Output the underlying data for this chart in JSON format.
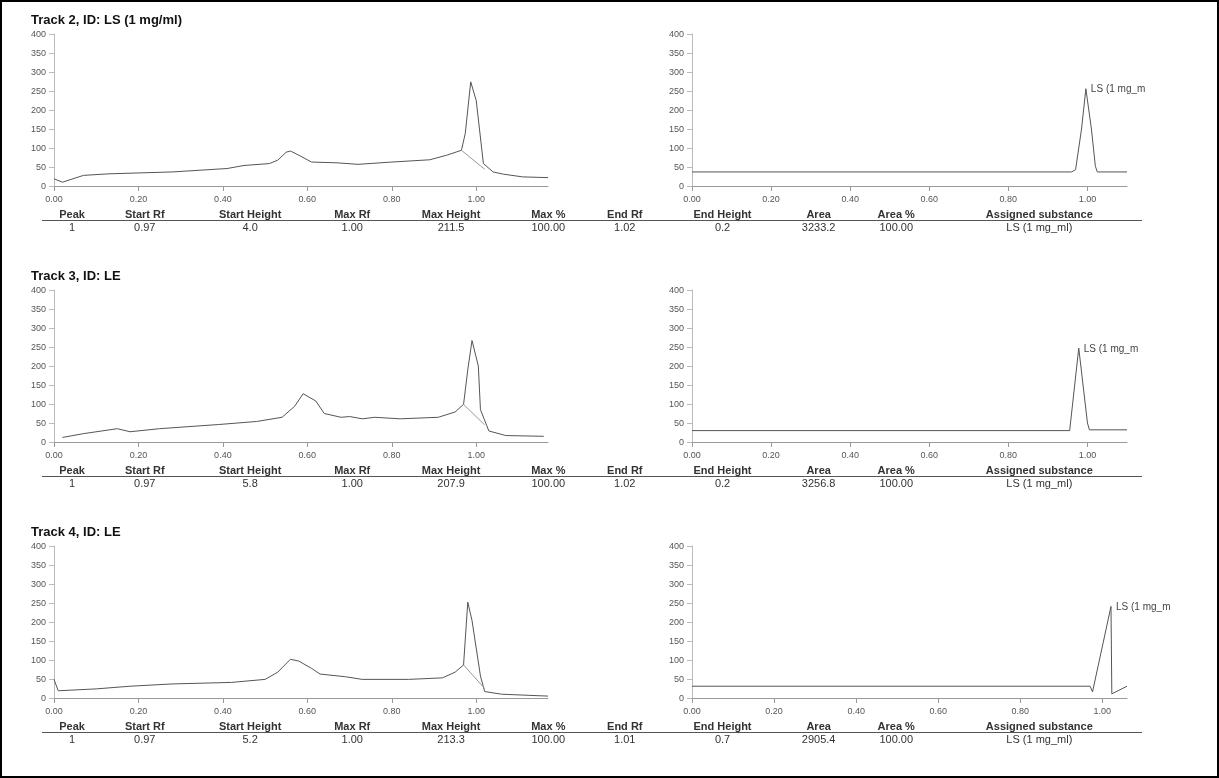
{
  "chart_data": [
    {
      "type": "line",
      "title": "Track 2, ID: LS (1 mg/ml)",
      "marker": "none",
      "xlim": [
        0,
        1.17
      ],
      "xticks": [
        {
          "value": 0,
          "label": "0.00"
        },
        {
          "value": 0.2,
          "label": "0.20"
        },
        {
          "value": 0.4,
          "label": "0.40"
        },
        {
          "value": 0.6,
          "label": "0.60"
        },
        {
          "value": 0.8,
          "label": "0.80"
        },
        {
          "value": 1,
          "label": "1.00"
        }
      ],
      "ylim": [
        0,
        400
      ],
      "yticks": [
        0,
        50,
        100,
        150,
        200,
        250,
        300,
        350,
        400
      ],
      "series": [
        {
          "color": "#555555",
          "x": [
            0,
            0.02,
            0.07,
            0.13,
            0.28,
            0.41,
            0.45,
            0.51,
            0.53,
            0.55,
            0.56,
            0.58,
            0.61,
            0.67,
            0.72,
            0.8,
            0.89,
            0.93,
            0.965,
            0.974,
            0.987,
            1.0,
            1.017,
            1.04,
            1.065,
            1.11,
            1.17
          ],
          "values": [
            19,
            10,
            28,
            32,
            37,
            46,
            54,
            59,
            68,
            89,
            92,
            81,
            63,
            61,
            57,
            63,
            69,
            81,
            94,
            138,
            274,
            225,
            59,
            37,
            31,
            24,
            22
          ]
        },
        {
          "color": "#999999",
          "x": [
            0.965,
            1.02
          ],
          "values": [
            94,
            44
          ]
        }
      ],
      "annotations": [
        "Peak",
        "Start Rf",
        "Start Height",
        "Max Rf",
        "Max Height",
        "Max %",
        "End Rf",
        "End Height",
        "Area",
        "Area %",
        "Assigned substance",
        "1",
        "0.97",
        "4.0",
        "1.00",
        "211.5",
        "100.00",
        "1.02",
        "0.2",
        "3233.2",
        "100.00",
        "LS (1 mg_ml)"
      ]
    },
    {
      "type": "line",
      "marker": "none",
      "xlim": [
        0,
        1.1
      ],
      "xticks": [
        {
          "value": 0,
          "label": "0.00"
        },
        {
          "value": 0.2,
          "label": "0.20"
        },
        {
          "value": 0.4,
          "label": "0.40"
        },
        {
          "value": 0.6,
          "label": "0.60"
        },
        {
          "value": 0.8,
          "label": "0.80"
        },
        {
          "value": 1,
          "label": "1.00"
        }
      ],
      "ylim": [
        0,
        400
      ],
      "yticks": [
        0,
        50,
        100,
        150,
        200,
        250,
        300,
        350,
        400
      ],
      "series": [
        {
          "color": "#555555",
          "x": [
            0,
            0.96,
            0.97,
            0.985,
            0.996,
            1.01,
            1.02,
            1.025,
            1.1
          ],
          "values": [
            37,
            37,
            43,
            150,
            256,
            150,
            52,
            37,
            37
          ]
        }
      ],
      "annotations": [
        {
          "text": "LS (1 mg_m",
          "x": 0.996,
          "y": 256
        }
      ]
    },
    {
      "type": "line",
      "title": "Track 3, ID: LE",
      "marker": "none",
      "xlim": [
        0,
        1.17
      ],
      "xticks": [
        {
          "value": 0,
          "label": "0.00"
        },
        {
          "value": 0.2,
          "label": "0.20"
        },
        {
          "value": 0.4,
          "label": "0.40"
        },
        {
          "value": 0.6,
          "label": "0.60"
        },
        {
          "value": 0.8,
          "label": "0.80"
        },
        {
          "value": 1,
          "label": "1.00"
        }
      ],
      "ylim": [
        0,
        400
      ],
      "yticks": [
        0,
        50,
        100,
        150,
        200,
        250,
        300,
        350,
        400
      ],
      "series": [
        {
          "color": "#555555",
          "x": [
            0.02,
            0.07,
            0.15,
            0.18,
            0.25,
            0.39,
            0.48,
            0.54,
            0.57,
            0.59,
            0.62,
            0.64,
            0.68,
            0.7,
            0.73,
            0.76,
            0.82,
            0.91,
            0.95,
            0.97,
            0.98,
            0.99,
            1.005,
            1.01,
            1.03,
            1.07,
            1.16
          ],
          "values": [
            12,
            22,
            35,
            27,
            35,
            46,
            54,
            65,
            94,
            127,
            108,
            75,
            65,
            67,
            61,
            65,
            61,
            65,
            79,
            99,
            190,
            267,
            200,
            85,
            29,
            17,
            15
          ]
        },
        {
          "color": "#999999",
          "x": [
            0.97,
            1.02
          ],
          "values": [
            99,
            45
          ]
        }
      ],
      "annotations": [
        "Peak",
        "Start Rf",
        "Start Height",
        "Max Rf",
        "Max Height",
        "Max %",
        "End Rf",
        "End Height",
        "Area",
        "Area %",
        "Assigned substance",
        "1",
        "0.97",
        "5.8",
        "1.00",
        "207.9",
        "100.00",
        "1.02",
        "0.2",
        "3256.8",
        "100.00",
        "LS (1 mg_ml)"
      ]
    },
    {
      "type": "line",
      "marker": "none",
      "xlim": [
        0,
        1.1
      ],
      "xticks": [
        {
          "value": 0,
          "label": "0.00"
        },
        {
          "value": 0.2,
          "label": "0.20"
        },
        {
          "value": 0.4,
          "label": "0.40"
        },
        {
          "value": 0.6,
          "label": "0.60"
        },
        {
          "value": 0.8,
          "label": "0.80"
        },
        {
          "value": 1,
          "label": "1.00"
        }
      ],
      "ylim": [
        0,
        400
      ],
      "yticks": [
        0,
        50,
        100,
        150,
        200,
        250,
        300,
        350,
        400
      ],
      "series": [
        {
          "color": "#555555",
          "x": [
            0,
            0.955,
            0.978,
            1.0,
            1.005,
            1.1
          ],
          "values": [
            30,
            30,
            247,
            50,
            32,
            32
          ]
        }
      ],
      "annotations": [
        {
          "text": "LS (1 mg_m",
          "x": 0.978,
          "y": 247
        }
      ]
    },
    {
      "type": "line",
      "title": "Track 4, ID: LE",
      "marker": "none",
      "xlim": [
        0,
        1.17
      ],
      "xticks": [
        {
          "value": 0,
          "label": "0.00"
        },
        {
          "value": 0.2,
          "label": "0.20"
        },
        {
          "value": 0.4,
          "label": "0.40"
        },
        {
          "value": 0.6,
          "label": "0.60"
        },
        {
          "value": 0.8,
          "label": "0.80"
        },
        {
          "value": 1,
          "label": "1.00"
        }
      ],
      "ylim": [
        0,
        400
      ],
      "yticks": [
        0,
        50,
        100,
        150,
        200,
        250,
        300,
        350,
        400
      ],
      "series": [
        {
          "color": "#555555",
          "x": [
            0,
            0.01,
            0.1,
            0.18,
            0.28,
            0.42,
            0.5,
            0.53,
            0.56,
            0.58,
            0.61,
            0.63,
            0.69,
            0.73,
            0.84,
            0.92,
            0.95,
            0.97,
            0.98,
            0.99,
            1.01,
            1.02,
            1.06,
            1.17
          ],
          "values": [
            49,
            19,
            24,
            31,
            37,
            41,
            49,
            68,
            102,
            97,
            78,
            63,
            56,
            49,
            49,
            53,
            68,
            87,
            252,
            204,
            58,
            17,
            10,
            5
          ]
        },
        {
          "color": "#999999",
          "x": [
            0.97,
            1.02
          ],
          "values": [
            87,
            25
          ]
        }
      ],
      "annotations": [
        "Peak",
        "Start Rf",
        "Start Height",
        "Max Rf",
        "Max Height",
        "Max %",
        "End Rf",
        "End Height",
        "Area",
        "Area %",
        "Assigned substance",
        "1",
        "0.97",
        "5.2",
        "1.00",
        "213.3",
        "100.00",
        "1.01",
        "0.7",
        "2905.4",
        "100.00",
        "LS (1 mg_ml)"
      ]
    },
    {
      "type": "line",
      "marker": "none",
      "xlim": [
        0,
        1.06
      ],
      "xticks": [
        {
          "value": 0,
          "label": "0.00"
        },
        {
          "value": 0.2,
          "label": "0.20"
        },
        {
          "value": 0.4,
          "label": "0.40"
        },
        {
          "value": 0.6,
          "label": "0.60"
        },
        {
          "value": 0.8,
          "label": "0.80"
        },
        {
          "value": 1,
          "label": "1.00"
        }
      ],
      "ylim": [
        0,
        400
      ],
      "yticks": [
        0,
        50,
        100,
        150,
        200,
        250,
        300,
        350,
        400
      ],
      "series": [
        {
          "color": "#555555",
          "x": [
            0,
            0.97,
            0.976,
            1.021,
            1.023,
            1.06
          ],
          "values": [
            31,
            31,
            16,
            241,
            11,
            31
          ]
        }
      ],
      "annotations": [
        {
          "text": "LS (1 mg_m",
          "x": 1.021,
          "y": 241
        }
      ]
    }
  ]
}
